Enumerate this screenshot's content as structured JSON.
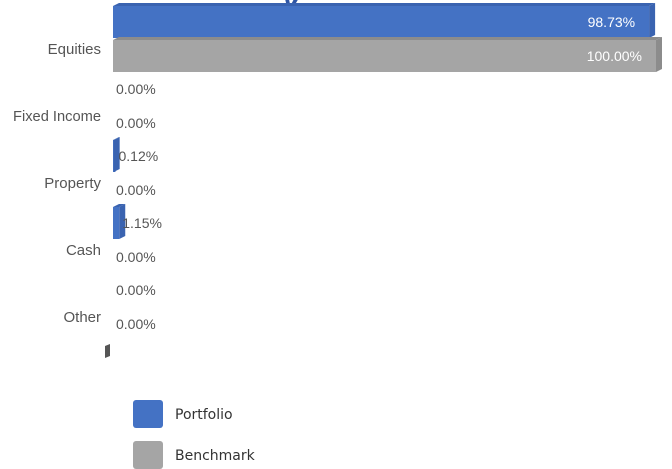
{
  "title_fragment": "y",
  "chart_data": {
    "type": "bar",
    "orientation": "horizontal",
    "categories": [
      "Equities",
      "Fixed Income",
      "Property",
      "Cash",
      "Other"
    ],
    "series": [
      {
        "name": "Portfolio",
        "values": [
          98.73,
          0.0,
          0.12,
          1.15,
          0.0
        ],
        "labels": [
          "98.73%",
          "0.00%",
          "0.12%",
          "1.15%",
          "0.00%"
        ]
      },
      {
        "name": "Benchmark",
        "values": [
          100.0,
          0.0,
          0.0,
          0.0,
          0.0
        ],
        "labels": [
          "100.00%",
          "0.00%",
          "0.00%",
          "0.00%",
          "0.00%"
        ]
      }
    ],
    "xlim": [
      0,
      100
    ],
    "grid": false,
    "legend_position": "bottom-left",
    "colors": {
      "Portfolio": "#4472c4",
      "Benchmark": "#a5a5a5"
    }
  }
}
